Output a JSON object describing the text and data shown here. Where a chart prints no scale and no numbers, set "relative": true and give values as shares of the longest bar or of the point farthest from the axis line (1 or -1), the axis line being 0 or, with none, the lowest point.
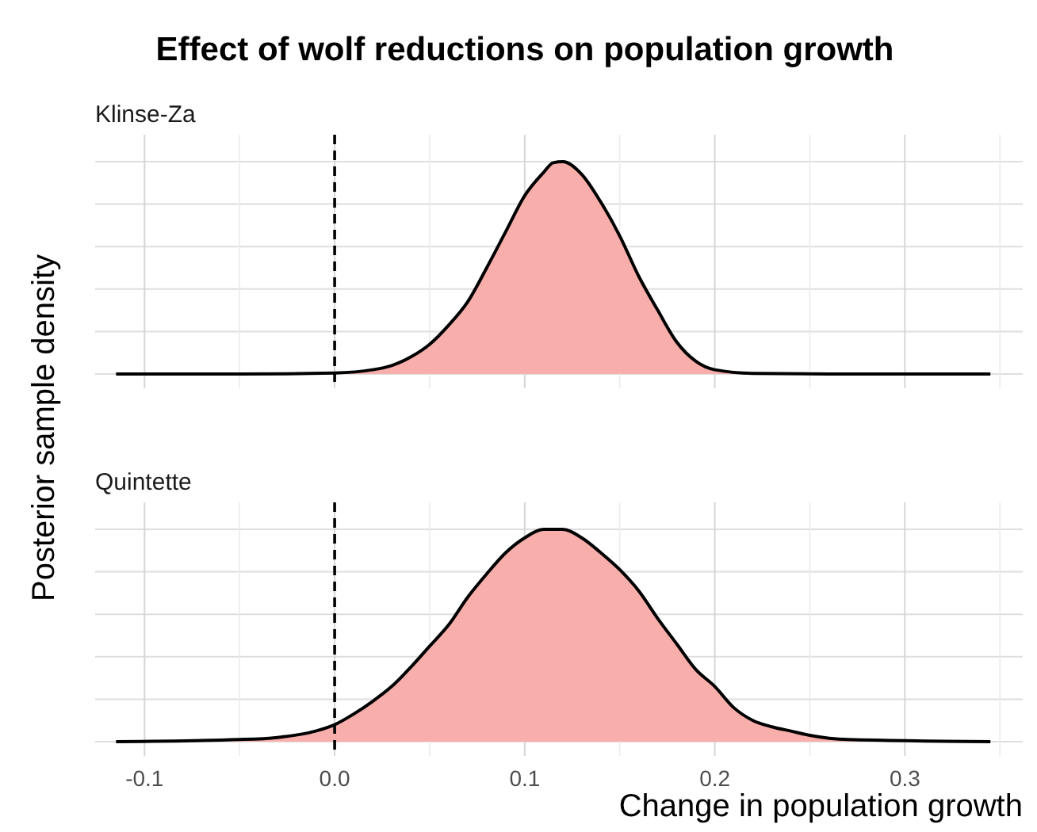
{
  "chart_data": [
    {
      "type": "area",
      "title": "Effect of wolf reductions on population growth",
      "subtitle": "Klinse-Za",
      "ylabel": "Posterior sample density",
      "relative": true,
      "x": [
        -0.115,
        -0.05,
        0.0,
        0.02,
        0.03,
        0.04,
        0.05,
        0.06,
        0.07,
        0.08,
        0.09,
        0.1,
        0.11,
        0.115,
        0.12,
        0.13,
        0.14,
        0.15,
        0.16,
        0.17,
        0.18,
        0.19,
        0.2,
        0.22,
        0.26,
        0.345
      ],
      "series": [
        {
          "color": "#f8aeaa",
          "values": [
            0,
            0,
            0.005,
            0.02,
            0.04,
            0.08,
            0.14,
            0.23,
            0.34,
            0.5,
            0.67,
            0.84,
            0.95,
            0.995,
            1,
            0.94,
            0.81,
            0.65,
            0.46,
            0.3,
            0.15,
            0.06,
            0.02,
            0.003,
            0,
            0
          ]
        }
      ],
      "xlim": [
        -0.126,
        0.362
      ],
      "xticks": [
        -0.1,
        0.0,
        0.1,
        0.2,
        0.3
      ],
      "tick_labels": false,
      "grid": true,
      "ref_lines": [
        {
          "axis": "x",
          "value": 0,
          "line_style": "dashed",
          "color": "#000000"
        }
      ]
    },
    {
      "type": "area",
      "title": "Quintette",
      "xlabel": "Change in population growth",
      "relative": true,
      "x": [
        -0.115,
        -0.05,
        -0.03,
        -0.01,
        0.0,
        0.01,
        0.02,
        0.03,
        0.04,
        0.05,
        0.06,
        0.07,
        0.08,
        0.09,
        0.1,
        0.11,
        0.12,
        0.13,
        0.14,
        0.15,
        0.16,
        0.17,
        0.18,
        0.19,
        0.2,
        0.21,
        0.22,
        0.23,
        0.24,
        0.25,
        0.27,
        0.345
      ],
      "series": [
        {
          "color": "#f8aeaa",
          "values": [
            0,
            0.01,
            0.02,
            0.05,
            0.08,
            0.13,
            0.19,
            0.26,
            0.35,
            0.45,
            0.55,
            0.68,
            0.79,
            0.89,
            0.96,
            1,
            1,
            0.96,
            0.89,
            0.81,
            0.71,
            0.58,
            0.46,
            0.34,
            0.26,
            0.16,
            0.1,
            0.07,
            0.05,
            0.03,
            0.01,
            0
          ]
        }
      ],
      "xlim": [
        -0.126,
        0.362
      ],
      "xticks": [
        -0.1,
        {
          "value": 0,
          "label": "0.0"
        },
        0.1,
        0.2,
        0.3
      ],
      "tick_labels": "x",
      "grid": true,
      "ref_lines": [
        {
          "axis": "x",
          "value": 0,
          "line_style": "dashed",
          "color": "#000000"
        }
      ]
    }
  ]
}
